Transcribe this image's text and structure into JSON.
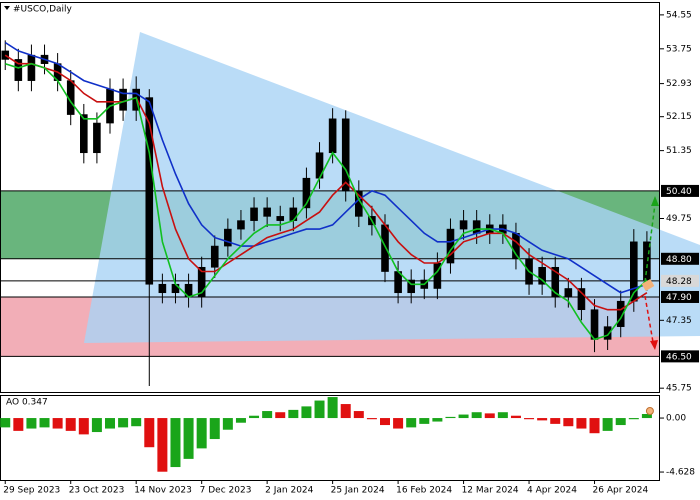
{
  "chart_data": [
    {
      "type": "candlestick",
      "title": "#USCO,Daily",
      "color": "#000000",
      "up_fill": "#000000",
      "down_fill": "#000000",
      "xlim": [
        -0.4,
        50
      ],
      "ylim": [
        45.66,
        54.83
      ],
      "xticks": [
        {
          "value": 0,
          "label": "29 Sep 2023"
        },
        {
          "value": 5,
          "label": "23 Oct 2023"
        },
        {
          "value": 10,
          "label": "14 Nov 2023"
        },
        {
          "value": 15,
          "label": "7 Dec 2023"
        },
        {
          "value": 20,
          "label": "2 Jan 2024"
        },
        {
          "value": 25,
          "label": "25 Jan 2024"
        },
        {
          "value": 30,
          "label": "16 Feb 2024"
        },
        {
          "value": 35,
          "label": "12 Mar 2024"
        },
        {
          "value": 40,
          "label": "4 Apr 2024"
        },
        {
          "value": 45,
          "label": "26 Apr 2024"
        }
      ],
      "yticks": [
        54.55,
        53.75,
        52.93,
        52.15,
        51.35,
        49.75,
        47.35,
        45.75
      ],
      "level_ticks": [
        {
          "value": 50.4,
          "label": "50.40",
          "color": "#000000"
        },
        {
          "value": 48.8,
          "label": "48.80",
          "color": "#000000"
        },
        {
          "value": 48.28,
          "label": "48.28",
          "color": "#d8d8d8"
        },
        {
          "value": 47.9,
          "label": "47.90",
          "color": "#000000"
        },
        {
          "value": 46.5,
          "label": "46.50",
          "color": "#000000"
        }
      ],
      "zones": [
        {
          "range": [
            48.8,
            50.4
          ],
          "color": "#4fa866"
        },
        {
          "range": [
            46.5,
            47.9
          ],
          "color": "#f0a0aa"
        }
      ],
      "open": [
        53.7,
        53.5,
        53.0,
        53.6,
        53.4,
        53.0,
        52.2,
        51.3,
        52.0,
        52.8,
        52.3,
        52.6,
        48.2,
        48.0,
        48.2,
        47.9,
        48.6,
        49.1,
        49.5,
        49.7,
        50.0,
        49.8,
        49.7,
        50.0,
        50.7,
        51.3,
        52.1,
        50.4,
        49.8,
        49.6,
        48.5,
        48.0,
        48.3,
        48.1,
        48.7,
        49.5,
        49.7,
        49.4,
        49.6,
        49.4,
        48.8,
        48.2,
        48.6,
        47.9,
        48.1,
        47.6,
        46.9,
        47.2,
        47.8,
        49.2
      ],
      "high": [
        53.95,
        53.75,
        53.85,
        53.85,
        53.65,
        53.25,
        52.45,
        52.25,
        53.05,
        53.05,
        53.1,
        52.8,
        48.45,
        48.45,
        48.45,
        48.85,
        49.35,
        49.75,
        49.95,
        50.25,
        50.25,
        50.05,
        50.25,
        50.95,
        51.55,
        52.35,
        52.3,
        50.65,
        50.05,
        49.85,
        48.75,
        48.55,
        48.55,
        48.95,
        49.75,
        49.95,
        49.95,
        49.85,
        49.85,
        49.65,
        49.05,
        48.85,
        48.85,
        48.35,
        48.35,
        47.85,
        47.45,
        48.05,
        49.5,
        49.45
      ],
      "low": [
        53.25,
        52.75,
        52.75,
        53.15,
        52.75,
        51.95,
        51.05,
        51.05,
        51.75,
        52.05,
        52.05,
        45.8,
        47.75,
        47.75,
        47.65,
        47.65,
        48.35,
        48.85,
        49.25,
        49.45,
        49.55,
        49.45,
        49.45,
        49.75,
        50.45,
        51.05,
        50.15,
        49.55,
        49.35,
        48.25,
        47.75,
        47.75,
        47.85,
        47.85,
        48.45,
        49.25,
        49.15,
        49.15,
        49.15,
        48.55,
        47.95,
        47.95,
        47.65,
        47.65,
        47.35,
        46.6,
        46.65,
        46.95,
        47.55,
        48.05
      ],
      "close": [
        53.5,
        53.0,
        53.6,
        53.4,
        53.0,
        52.2,
        51.3,
        52.0,
        52.8,
        52.3,
        52.8,
        48.2,
        48.0,
        48.2,
        47.9,
        48.6,
        49.1,
        49.5,
        49.7,
        50.0,
        49.8,
        49.7,
        50.0,
        50.7,
        51.3,
        52.1,
        50.4,
        49.8,
        49.6,
        48.5,
        48.0,
        48.3,
        48.1,
        48.7,
        49.5,
        49.7,
        49.4,
        49.6,
        49.4,
        48.8,
        48.2,
        48.6,
        47.9,
        48.1,
        47.6,
        46.9,
        47.2,
        47.8,
        49.2,
        48.3
      ],
      "lines": [
        {
          "color": "#1030c8",
          "values": [
            53.9,
            53.7,
            53.6,
            53.5,
            53.4,
            53.2,
            53.0,
            52.9,
            52.8,
            52.7,
            52.7,
            52.5,
            51.6,
            50.8,
            50.1,
            49.6,
            49.3,
            49.2,
            49.1,
            49.1,
            49.2,
            49.3,
            49.4,
            49.5,
            49.5,
            49.6,
            49.9,
            50.2,
            50.4,
            50.3,
            50.0,
            49.7,
            49.4,
            49.2,
            49.2,
            49.3,
            49.4,
            49.5,
            49.5,
            49.4,
            49.2,
            49.0,
            48.9,
            48.8,
            48.6,
            48.4,
            48.2,
            48.0,
            48.1,
            48.2
          ]
        },
        {
          "color": "#c81010",
          "values": [
            53.6,
            53.4,
            53.4,
            53.3,
            53.2,
            53.0,
            52.7,
            52.5,
            52.5,
            52.5,
            52.6,
            52.0,
            50.5,
            49.5,
            48.8,
            48.5,
            48.5,
            48.7,
            48.9,
            49.1,
            49.3,
            49.4,
            49.5,
            49.7,
            49.9,
            50.3,
            50.6,
            50.3,
            50.0,
            49.6,
            49.2,
            48.9,
            48.7,
            48.7,
            48.9,
            49.2,
            49.3,
            49.4,
            49.4,
            49.2,
            48.9,
            48.7,
            48.5,
            48.3,
            48.0,
            47.7,
            47.6,
            47.6,
            47.8,
            48.0
          ]
        },
        {
          "color": "#10c020",
          "values": [
            53.4,
            53.3,
            53.4,
            53.3,
            53.0,
            52.5,
            52.1,
            52.1,
            52.4,
            52.5,
            52.6,
            51.3,
            49.2,
            48.2,
            47.9,
            48.0,
            48.4,
            48.8,
            49.1,
            49.4,
            49.6,
            49.6,
            49.7,
            50.1,
            50.7,
            51.3,
            50.9,
            50.2,
            49.7,
            49.1,
            48.5,
            48.2,
            48.2,
            48.5,
            49.0,
            49.4,
            49.5,
            49.5,
            49.4,
            48.9,
            48.5,
            48.3,
            48.0,
            47.8,
            47.3,
            46.9,
            47.0,
            47.4,
            48.0,
            48.3
          ]
        }
      ]
    },
    {
      "type": "bar",
      "title": "AO 0.347",
      "up_color": "#1aa51a",
      "down_color": "#e01010",
      "xlim": [
        -0.4,
        50
      ],
      "ylim": [
        -5.31,
        1.89
      ],
      "yticks": [
        {
          "value": 0,
          "label": "0.00"
        },
        -4.628
      ],
      "values": [
        -0.8,
        -1.1,
        -0.9,
        -0.8,
        -0.9,
        -1.1,
        -1.4,
        -1.2,
        -0.9,
        -0.8,
        -0.7,
        -2.5,
        -4.6,
        -4.2,
        -3.5,
        -2.6,
        -1.8,
        -1.0,
        -0.4,
        0.2,
        0.6,
        0.5,
        0.7,
        1.0,
        1.5,
        1.8,
        1.2,
        0.6,
        -0.1,
        -0.6,
        -0.9,
        -0.8,
        -0.5,
        -0.3,
        0.1,
        0.3,
        0.5,
        0.4,
        0.5,
        0.2,
        -0.1,
        -0.2,
        -0.5,
        -0.7,
        -0.9,
        -1.3,
        -1.1,
        -0.6,
        -0.1,
        0.347
      ]
    }
  ]
}
